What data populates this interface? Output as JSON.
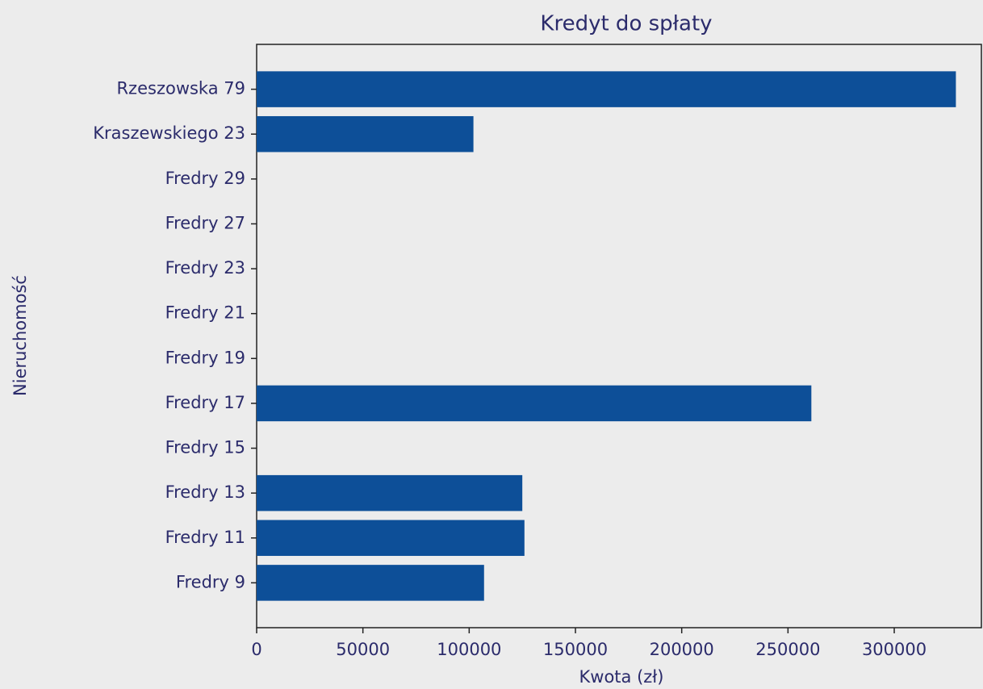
{
  "chart_data": {
    "type": "barh",
    "title": "Kredyt do spłaty",
    "xlabel": "Kwota (zł)",
    "ylabel": "Nieruchomość",
    "categories": [
      "Fredry 9",
      "Fredry 11",
      "Fredry 13",
      "Fredry 15",
      "Fredry 17",
      "Fredry 19",
      "Fredry 21",
      "Fredry 23",
      "Fredry 27",
      "Fredry 29",
      "Kraszewskiego 23",
      "Rzeszowska 79"
    ],
    "values": [
      107000,
      126000,
      125000,
      0,
      261000,
      0,
      0,
      0,
      0,
      0,
      102000,
      329000
    ],
    "color": "#0d4f98",
    "xlim": [
      0,
      341000
    ],
    "xticks": [
      0,
      50000,
      100000,
      150000,
      200000,
      250000,
      300000
    ],
    "grid": false
  }
}
